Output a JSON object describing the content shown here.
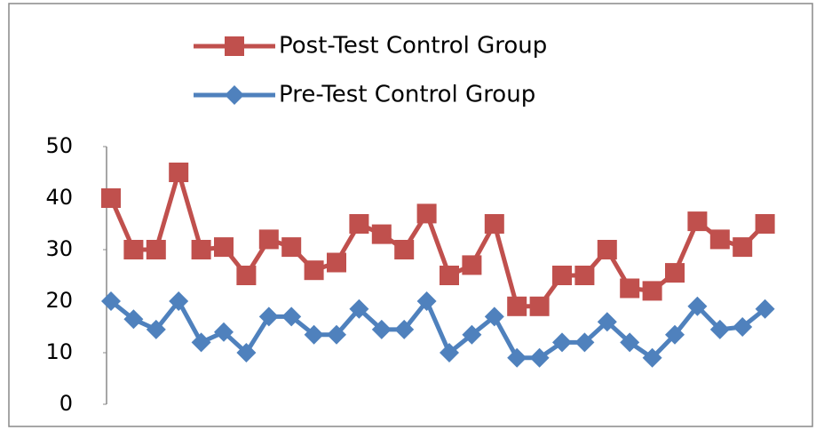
{
  "chart_data": {
    "type": "line",
    "series": [
      {
        "name": "Post-Test Control Group",
        "color": "#c0504d",
        "marker": "square",
        "values": [
          40,
          30,
          30,
          45,
          30,
          30.5,
          25,
          32,
          30.5,
          26,
          27.5,
          35,
          33,
          30,
          37,
          25,
          27,
          35,
          19,
          19,
          25,
          25,
          30,
          22.5,
          22,
          25.5,
          35.5,
          32,
          30.5,
          35
        ]
      },
      {
        "name": "Pre-Test Control Group",
        "color": "#4f81bd",
        "marker": "diamond",
        "values": [
          20,
          16.5,
          14.5,
          20,
          12,
          14,
          10,
          17,
          17,
          13.5,
          13.5,
          18.5,
          14.5,
          14.5,
          20,
          10,
          13.5,
          17,
          9,
          9,
          12,
          12,
          16,
          12,
          9,
          13.5,
          19,
          14.5,
          15,
          18.5
        ]
      }
    ],
    "ylim": [
      0,
      50
    ],
    "yticks": [
      0,
      10,
      20,
      30,
      40,
      50
    ],
    "grid": false,
    "legend": "top"
  }
}
